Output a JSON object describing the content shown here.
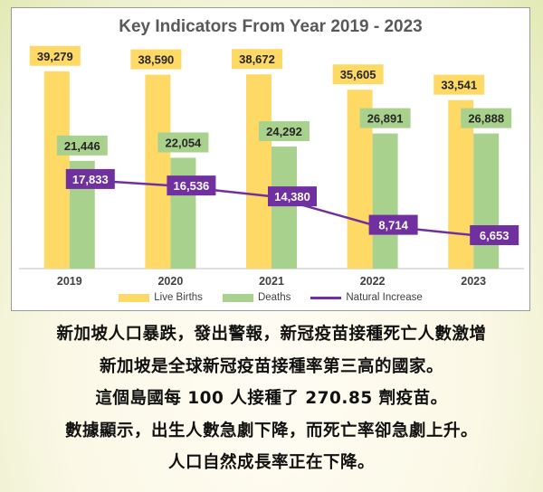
{
  "chart_data": {
    "type": "bar",
    "title": "Key Indicators From Year 2019 - 2023",
    "categories": [
      "2019",
      "2020",
      "2021",
      "2022",
      "2023"
    ],
    "ylim": [
      0,
      45000
    ],
    "grid": false,
    "legend_position": "bottom",
    "series": [
      {
        "name": "Live Births",
        "type": "bar",
        "color": "#ffd966",
        "values": [
          39279,
          38590,
          38672,
          35605,
          33541
        ],
        "labels": [
          "39,279",
          "38,590",
          "38,672",
          "35,605",
          "33,541"
        ]
      },
      {
        "name": "Deaths",
        "type": "bar",
        "color": "#a9d18e",
        "values": [
          21446,
          22054,
          24292,
          26891,
          26888
        ],
        "labels": [
          "21,446",
          "22,054",
          "24,292",
          "26,891",
          "26,888"
        ]
      },
      {
        "name": "Natural Increase",
        "type": "line",
        "color": "#7030a0",
        "values": [
          17833,
          16536,
          14380,
          8714,
          6653
        ],
        "labels": [
          "17,833",
          "16,536",
          "14,380",
          "8,714",
          "6,653"
        ]
      }
    ]
  },
  "caption": {
    "lines": [
      "新加坡人口暴跌，發出警報，新冠疫苗接種死亡人數激增",
      "新加坡是全球新冠疫苗接種率第三高的國家。",
      "這個島國每 100 人接種了 270.85 劑疫苗。",
      "數據顯示，出生人數急劇下降，而死亡率卻急劇上升。",
      "人口自然成長率正在下降。"
    ]
  }
}
